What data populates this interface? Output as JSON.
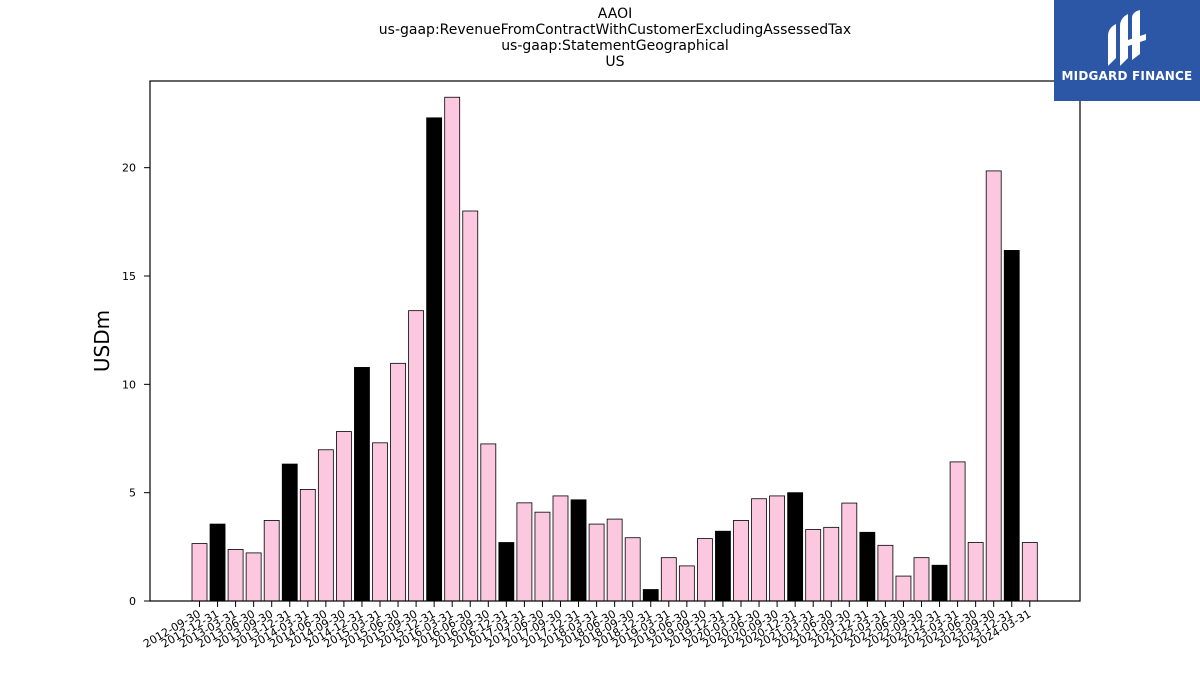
{
  "title": {
    "line1": "AAOI",
    "line2": "us-gaap:RevenueFromContractWithCustomerExcludingAssessedTax",
    "line3": "us-gaap:StatementGeographical",
    "line4": "US"
  },
  "logo": {
    "text": "MIDGARD FINANCE",
    "color": "#2c56a6"
  },
  "colors": {
    "pink": "#fcc8e0",
    "black": "#000000"
  },
  "chart_data": {
    "type": "bar",
    "ylabel": "USDm",
    "xlabel": "",
    "ylim": [
      0,
      24
    ],
    "yticks": [
      0,
      5,
      10,
      15,
      20
    ],
    "grid": false,
    "categories": [
      "2012-09-30",
      "2012-12-31",
      "2013-03-31",
      "2013-06-30",
      "2013-09-30",
      "2013-12-31",
      "2014-03-31",
      "2014-06-30",
      "2014-09-30",
      "2014-12-31",
      "2015-03-31",
      "2015-06-30",
      "2015-09-30",
      "2015-12-31",
      "2016-03-31",
      "2016-06-30",
      "2016-09-30",
      "2016-12-31",
      "2017-03-31",
      "2017-06-30",
      "2017-09-30",
      "2017-12-31",
      "2018-03-31",
      "2018-06-30",
      "2018-09-30",
      "2018-12-31",
      "2019-03-31",
      "2019-06-30",
      "2019-09-30",
      "2019-12-31",
      "2020-03-31",
      "2020-06-30",
      "2020-09-30",
      "2020-12-31",
      "2021-03-31",
      "2021-06-30",
      "2021-09-30",
      "2021-12-31",
      "2022-03-31",
      "2022-06-30",
      "2022-09-30",
      "2022-12-31",
      "2023-03-31",
      "2023-06-30",
      "2023-09-30",
      "2023-12-31",
      "2024-03-31"
    ],
    "values": [
      2.65,
      3.55,
      2.38,
      2.22,
      3.72,
      6.32,
      5.15,
      6.98,
      7.82,
      10.78,
      7.3,
      10.97,
      13.4,
      22.3,
      23.25,
      18.0,
      7.25,
      2.7,
      4.53,
      4.1,
      4.85,
      4.67,
      3.55,
      3.78,
      2.92,
      0.53,
      2.0,
      1.62,
      2.88,
      3.22,
      3.72,
      4.72,
      4.85,
      5.0,
      3.3,
      3.4,
      4.52,
      3.17,
      2.57,
      1.15,
      2.0,
      1.65,
      6.42,
      2.7,
      19.85,
      16.18,
      2.7
    ],
    "fill": [
      "pink",
      "black",
      "pink",
      "pink",
      "pink",
      "black",
      "pink",
      "pink",
      "pink",
      "black",
      "pink",
      "pink",
      "pink",
      "black",
      "pink",
      "pink",
      "pink",
      "black",
      "pink",
      "pink",
      "pink",
      "black",
      "pink",
      "pink",
      "pink",
      "black",
      "pink",
      "pink",
      "pink",
      "black",
      "pink",
      "pink",
      "pink",
      "black",
      "pink",
      "pink",
      "pink",
      "black",
      "pink",
      "pink",
      "pink",
      "black",
      "pink",
      "pink",
      "pink",
      "black",
      "pink"
    ]
  }
}
